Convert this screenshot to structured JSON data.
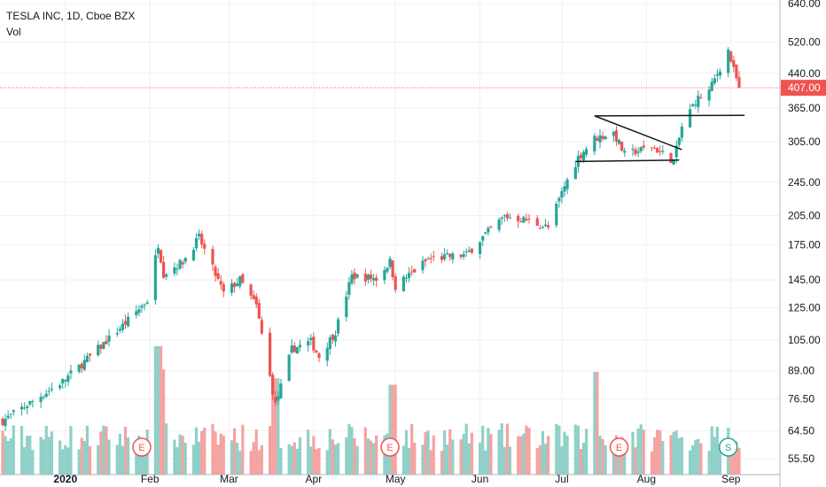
{
  "header": {
    "title": "TESLA INC, 1D, Cboe BZX",
    "subtitle": "Vol"
  },
  "colors": {
    "up": "#26a69a",
    "down": "#ef5350",
    "up_vol": "#8fd0c8",
    "down_vol": "#f4a3a1",
    "grid": "#eef0f3",
    "price_line": "#ef5350",
    "axis_text": "#131722"
  },
  "chart_data": {
    "type": "candlestick",
    "title": "TESLA INC, 1D, Cboe BZX",
    "xlabel": "",
    "ylabel": "",
    "y_scale": "log",
    "ylim": [
      55.5,
      640
    ],
    "y_ticks": [
      "640.00",
      "520.00",
      "440.00",
      "365.00",
      "305.00",
      "245.00",
      "205.00",
      "175.00",
      "145.00",
      "125.00",
      "105.00",
      "89.00",
      "76.50",
      "64.50",
      "55.50"
    ],
    "x_ticks": [
      {
        "label": "2020",
        "date": "2020-01-01"
      },
      {
        "label": "Feb",
        "date": "2020-02-01"
      },
      {
        "label": "Mar",
        "date": "2020-03-01"
      },
      {
        "label": "Apr",
        "date": "2020-04-01"
      },
      {
        "label": "May",
        "date": "2020-05-01"
      },
      {
        "label": "Jun",
        "date": "2020-06-01"
      },
      {
        "label": "Jul",
        "date": "2020-07-01"
      },
      {
        "label": "Aug",
        "date": "2020-08-01"
      },
      {
        "label": "Sep",
        "date": "2020-09-01"
      }
    ],
    "current_price": {
      "label": "407.00",
      "value": 407
    },
    "date_range": [
      "2019-12-09",
      "2020-09-04"
    ],
    "price_path": [
      {
        "date": "2019-12-09",
        "close": 68
      },
      {
        "date": "2019-12-31",
        "close": 84
      },
      {
        "date": "2020-01-10",
        "close": 96
      },
      {
        "date": "2020-01-23",
        "close": 115
      },
      {
        "date": "2020-01-31",
        "close": 130
      },
      {
        "date": "2020-02-04",
        "close": 176
      },
      {
        "date": "2020-02-06",
        "close": 150
      },
      {
        "date": "2020-02-13",
        "close": 160
      },
      {
        "date": "2020-02-19",
        "close": 182
      },
      {
        "date": "2020-02-28",
        "close": 135
      },
      {
        "date": "2020-03-05",
        "close": 145
      },
      {
        "date": "2020-03-11",
        "close": 126
      },
      {
        "date": "2020-03-18",
        "close": 74
      },
      {
        "date": "2020-03-24",
        "close": 100
      },
      {
        "date": "2020-03-31",
        "close": 104
      },
      {
        "date": "2020-04-03",
        "close": 96
      },
      {
        "date": "2020-04-09",
        "close": 110
      },
      {
        "date": "2020-04-15",
        "close": 148
      },
      {
        "date": "2020-04-24",
        "close": 146
      },
      {
        "date": "2020-04-29",
        "close": 160
      },
      {
        "date": "2020-05-01",
        "close": 140
      },
      {
        "date": "2020-05-13",
        "close": 162
      },
      {
        "date": "2020-05-27",
        "close": 166
      },
      {
        "date": "2020-06-01",
        "close": 180
      },
      {
        "date": "2020-06-10",
        "close": 204
      },
      {
        "date": "2020-06-18",
        "close": 200
      },
      {
        "date": "2020-06-26",
        "close": 192
      },
      {
        "date": "2020-07-02",
        "close": 240
      },
      {
        "date": "2020-07-07",
        "close": 280
      },
      {
        "date": "2020-07-13",
        "close": 310
      },
      {
        "date": "2020-07-20",
        "close": 320
      },
      {
        "date": "2020-07-24",
        "close": 284
      },
      {
        "date": "2020-08-03",
        "close": 297
      },
      {
        "date": "2020-08-11",
        "close": 275
      },
      {
        "date": "2020-08-14",
        "close": 330
      },
      {
        "date": "2020-08-19",
        "close": 380
      },
      {
        "date": "2020-08-24",
        "close": 400
      },
      {
        "date": "2020-08-31",
        "close": 498
      },
      {
        "date": "2020-09-02",
        "close": 447
      },
      {
        "date": "2020-09-04",
        "close": 407
      }
    ],
    "volume_spikes": [
      {
        "date": "2020-02-04",
        "relative": 1.0
      },
      {
        "date": "2020-02-05",
        "relative": 0.82
      },
      {
        "date": "2020-03-18",
        "relative": 0.75
      },
      {
        "date": "2020-04-30",
        "relative": 0.7
      },
      {
        "date": "2020-07-13",
        "relative": 0.8
      }
    ],
    "events": [
      {
        "label": "E",
        "date": "2020-01-29"
      },
      {
        "label": "E",
        "date": "2020-04-29"
      },
      {
        "label": "E",
        "date": "2020-07-22"
      },
      {
        "label": "S",
        "date": "2020-08-31"
      }
    ],
    "drawings": [
      {
        "type": "trendline",
        "from": {
          "date": "2020-07-13",
          "price": 350
        },
        "to": {
          "date": "2020-08-14",
          "price": 292
        }
      },
      {
        "type": "trendline",
        "from": {
          "date": "2020-07-06",
          "price": 274
        },
        "to": {
          "date": "2020-08-13",
          "price": 276
        }
      },
      {
        "type": "trendline",
        "from": {
          "date": "2020-07-13",
          "price": 350
        },
        "to": {
          "date": "2020-09-06",
          "price": 351
        }
      }
    ]
  }
}
